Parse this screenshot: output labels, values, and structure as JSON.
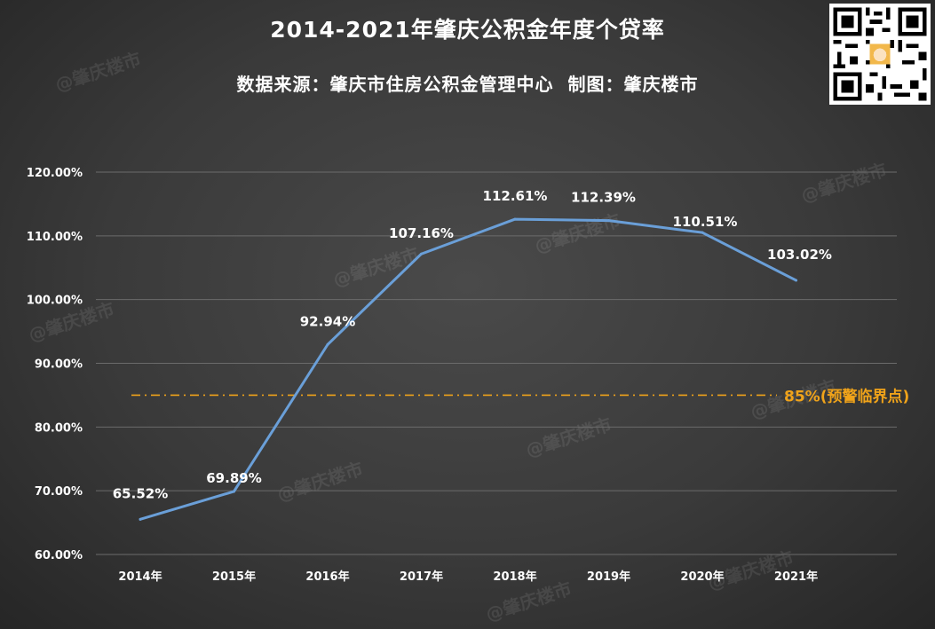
{
  "header": {
    "title": "2014-2021年肇庆公积金年度个贷率",
    "source": "数据来源：肇庆市住房公积金管理中心",
    "credit": "制图：肇庆楼市"
  },
  "watermark": "@肇庆楼市",
  "chart_data": {
    "type": "line",
    "title": "2014-2021年肇庆公积金年度个贷率",
    "categories": [
      "2014年",
      "2015年",
      "2016年",
      "2017年",
      "2018年",
      "2019年",
      "2020年",
      "2021年"
    ],
    "values": [
      65.52,
      69.89,
      92.94,
      107.16,
      112.61,
      112.39,
      110.51,
      103.02
    ],
    "value_labels": [
      "65.52%",
      "69.89%",
      "92.94%",
      "107.16%",
      "112.61%",
      "112.39%",
      "110.51%",
      "103.02%"
    ],
    "ylim": [
      60,
      120
    ],
    "yticks": [
      "60.00%",
      "70.00%",
      "80.00%",
      "90.00%",
      "100.00%",
      "110.00%",
      "120.00%"
    ],
    "grid": true,
    "line_color": "#6a9fd8",
    "reference_line": {
      "value": 85,
      "label": "85%(预警临界点)",
      "color": "#f0a31a"
    }
  }
}
